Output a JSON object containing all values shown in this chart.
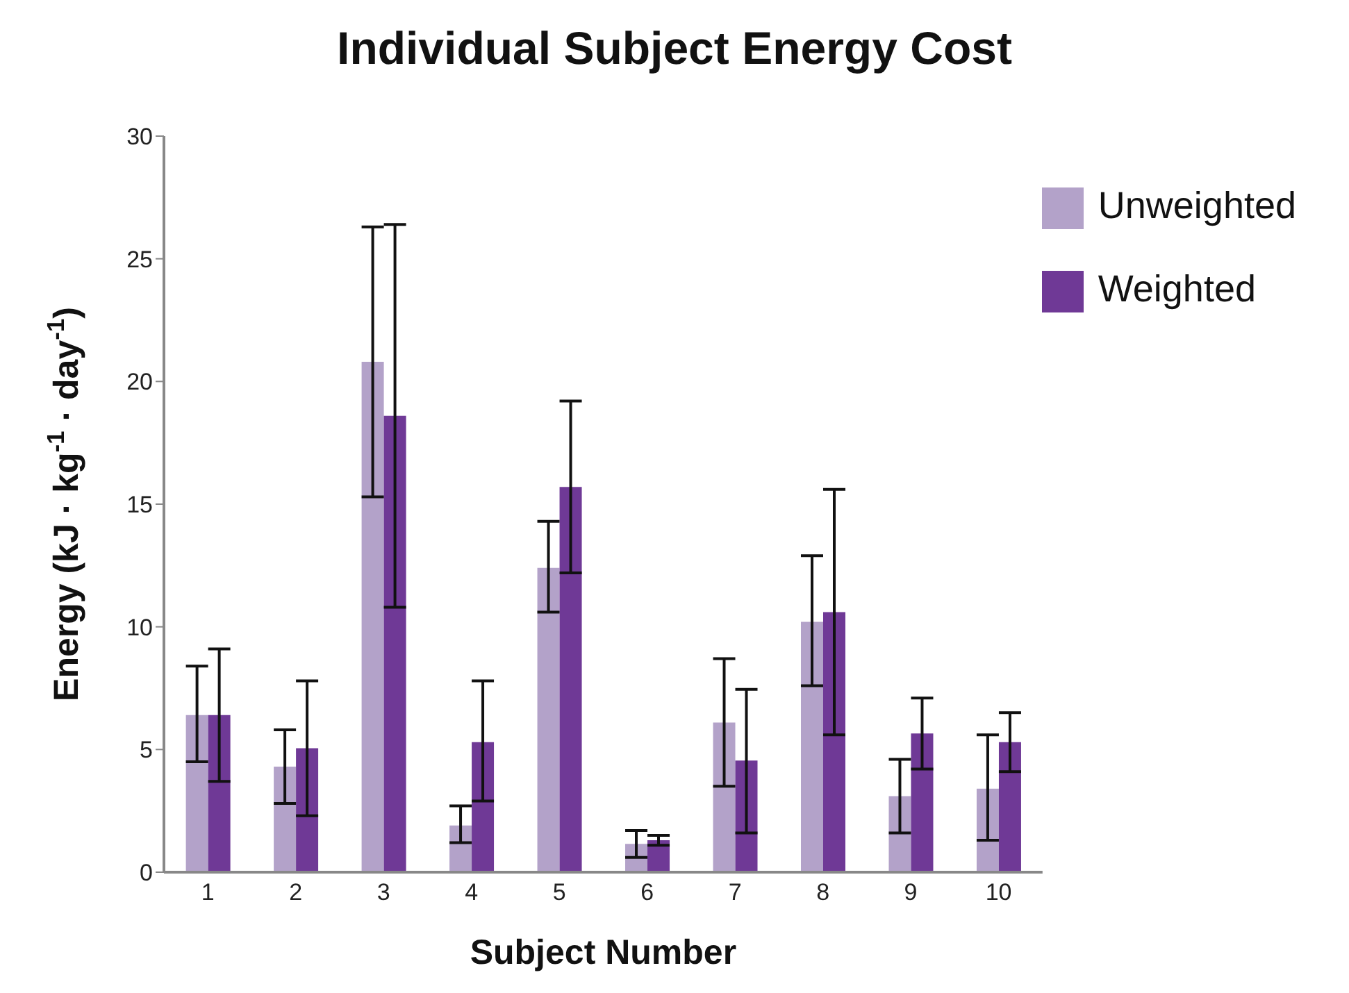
{
  "chart_data": {
    "type": "bar",
    "title": "Individual Subject Energy Cost",
    "xlabel": "Subject Number",
    "ylabel": "Energy (kJ · kg$^{-1}$ · day$^{-1}$)",
    "categories": [
      "1",
      "2",
      "3",
      "4",
      "5",
      "6",
      "7",
      "8",
      "9",
      "10"
    ],
    "series": [
      {
        "name": "Unweighted",
        "color": "#b3a2c9",
        "values": [
          6.4,
          4.3,
          20.8,
          1.9,
          12.4,
          1.15,
          6.1,
          10.2,
          3.1,
          3.4
        ],
        "errors": [
          [
            4.5,
            8.4
          ],
          [
            2.8,
            5.8
          ],
          [
            15.3,
            26.3
          ],
          [
            1.2,
            2.7
          ],
          [
            10.6,
            14.3
          ],
          [
            0.6,
            1.7
          ],
          [
            3.5,
            8.7
          ],
          [
            7.6,
            12.9
          ],
          [
            1.6,
            4.6
          ],
          [
            1.3,
            5.6
          ]
        ]
      },
      {
        "name": "Weighted",
        "color": "#6f3996",
        "values": [
          6.4,
          5.05,
          18.6,
          5.3,
          15.7,
          1.3,
          4.55,
          10.6,
          5.65,
          5.3
        ],
        "errors": [
          [
            3.7,
            9.1
          ],
          [
            2.3,
            7.8
          ],
          [
            10.8,
            26.4
          ],
          [
            2.9,
            7.8
          ],
          [
            12.2,
            19.2
          ],
          [
            1.1,
            1.5
          ],
          [
            1.6,
            7.45
          ],
          [
            5.6,
            15.6
          ],
          [
            4.2,
            7.1
          ],
          [
            4.1,
            6.5
          ]
        ]
      }
    ],
    "ylim": [
      0,
      30
    ],
    "yticks": [
      0,
      5,
      10,
      15,
      20,
      25,
      30
    ],
    "grid": false,
    "legend": "top right"
  }
}
